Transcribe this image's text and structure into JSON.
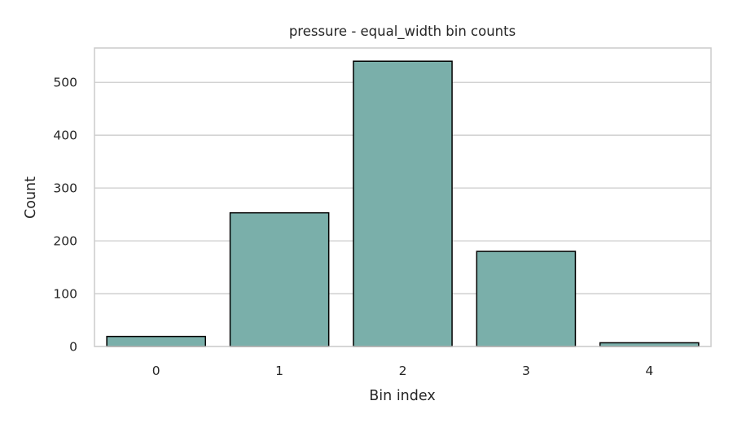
{
  "chart_data": {
    "type": "bar",
    "title": "pressure - equal_width bin counts",
    "xlabel": "Bin index",
    "ylabel": "Count",
    "categories": [
      "0",
      "1",
      "2",
      "3",
      "4"
    ],
    "values": [
      19,
      253,
      540,
      180,
      7
    ],
    "ylim": [
      0,
      565
    ],
    "yticks": [
      0,
      100,
      200,
      300,
      400,
      500
    ],
    "grid": true,
    "bar_color": "#7aafaa",
    "bar_edge_color": "#000000"
  }
}
